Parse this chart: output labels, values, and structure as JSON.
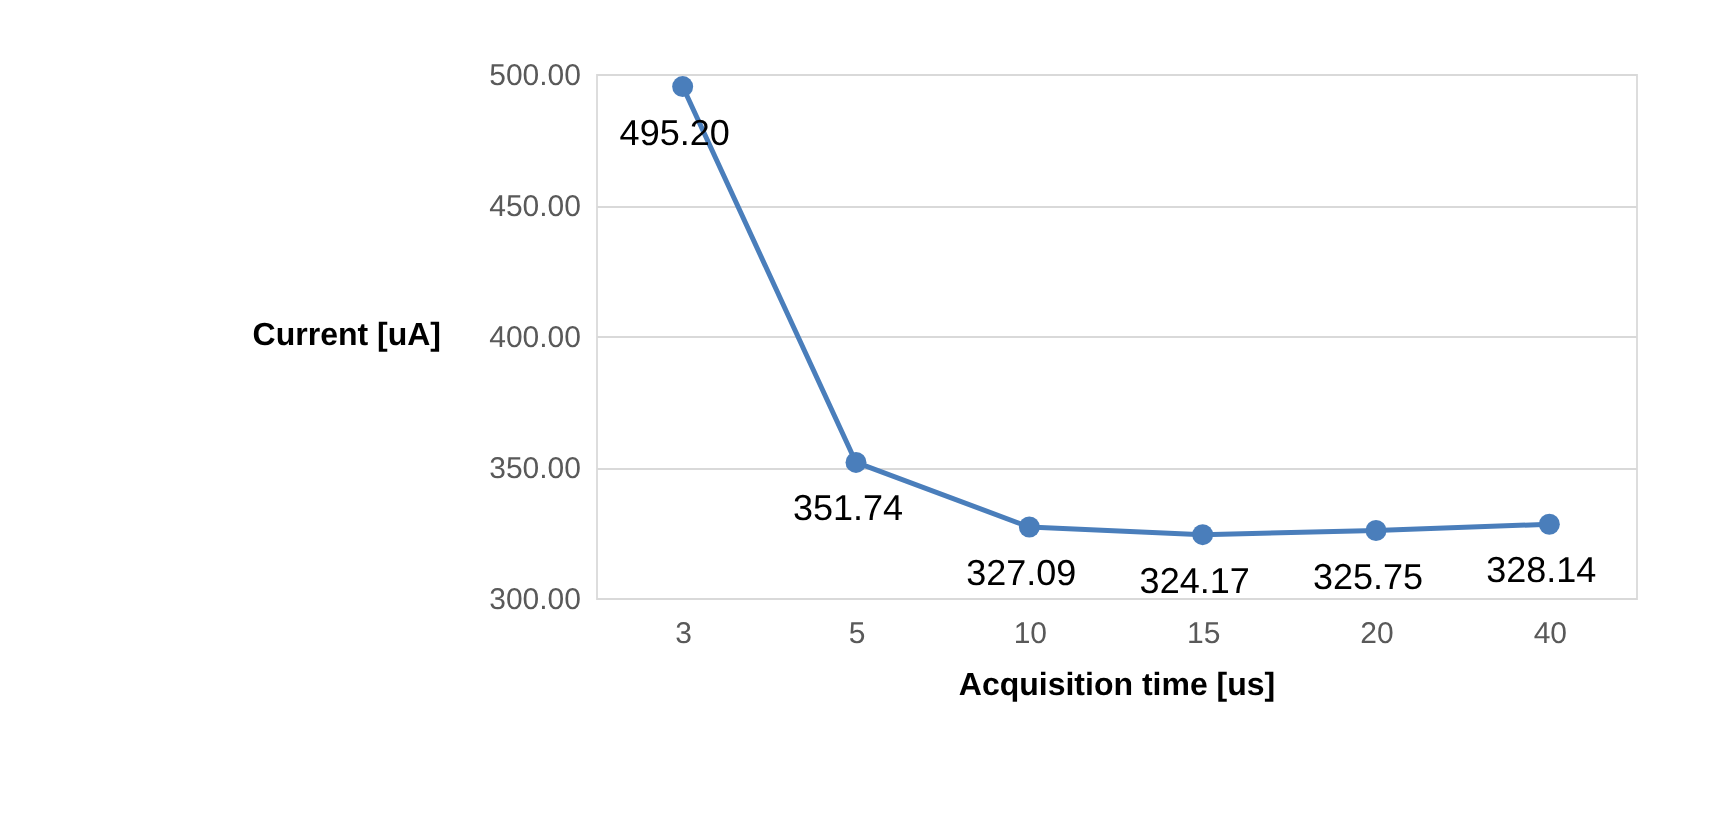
{
  "chart_data": {
    "type": "line",
    "xlabel": "Acquisition time [us]",
    "ylabel": "Current [uA]",
    "categories": [
      "3",
      "5",
      "10",
      "15",
      "20",
      "40"
    ],
    "series": [
      {
        "color": "#4a7ebb",
        "values": [
          495.2,
          351.74,
          327.09,
          324.17,
          325.75,
          328.14
        ],
        "value_labels": [
          "495.20",
          "351.74",
          "327.09",
          "324.17",
          "325.75",
          "328.14"
        ]
      }
    ],
    "ylim": [
      300,
      500
    ],
    "yticks": [
      {
        "value": 300,
        "label": "300.00"
      },
      {
        "value": 350,
        "label": "350.00"
      },
      {
        "value": 400,
        "label": "400.00"
      },
      {
        "value": 450,
        "label": "450.00"
      },
      {
        "value": 500,
        "label": "500.00"
      }
    ],
    "grid": "y",
    "marker": "circle",
    "line_style": "solid"
  }
}
